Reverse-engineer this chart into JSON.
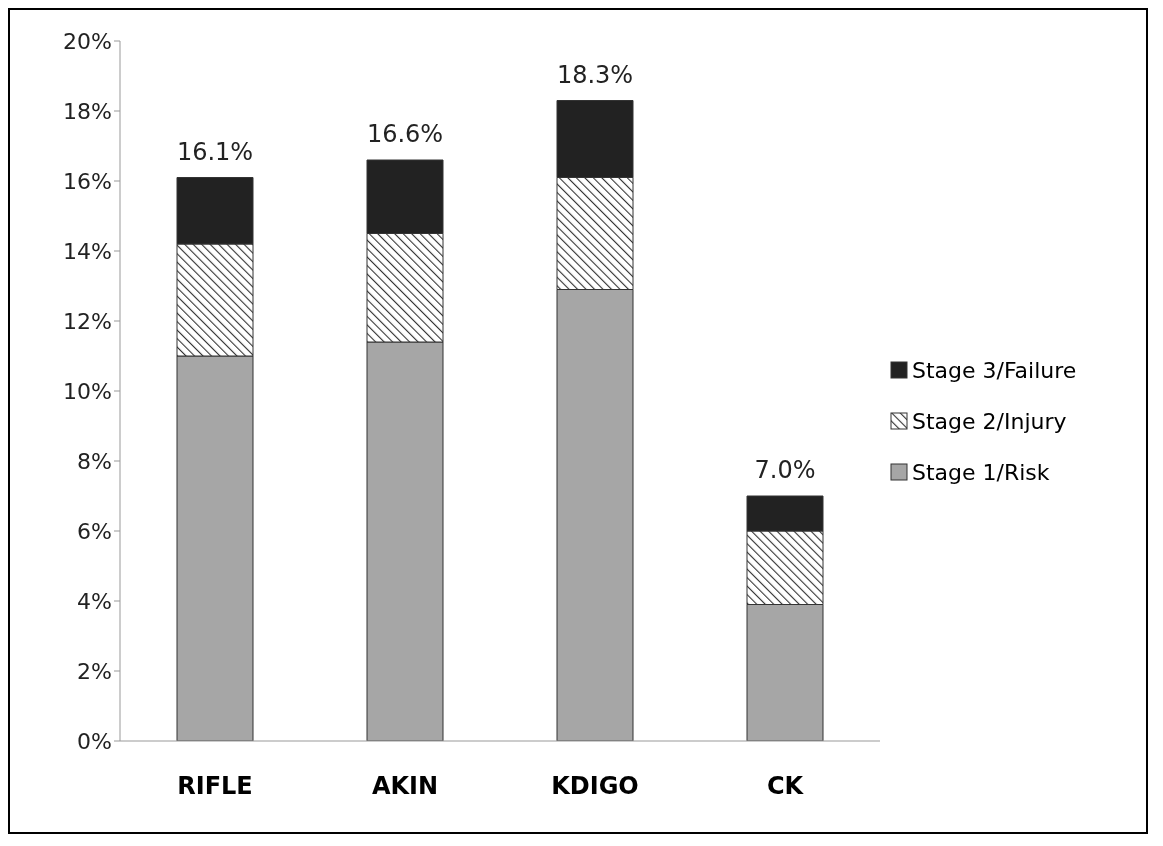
{
  "chart_data": {
    "type": "bar",
    "stacked": true,
    "categories": [
      "RIFLE",
      "AKIN",
      "KDIGO",
      "CK"
    ],
    "series": [
      {
        "name": "Stage 1/Risk",
        "color": "#a6a6a6",
        "values": [
          11.0,
          11.4,
          12.9,
          3.9
        ]
      },
      {
        "name": "Stage 2/Injury",
        "color": "#333333",
        "values": [
          3.2,
          3.1,
          3.2,
          2.1
        ]
      },
      {
        "name": "Stage 3/Failure",
        "color": "#222222",
        "values": [
          1.9,
          2.1,
          2.2,
          1.0
        ]
      }
    ],
    "totals": [
      "16.1%",
      "16.6%",
      "18.3%",
      "7.0%"
    ],
    "ylim": [
      0,
      20
    ],
    "yticks": [
      {
        "value": 0,
        "label": "0%"
      },
      {
        "value": 2,
        "label": "2%"
      },
      {
        "value": 4,
        "label": "4%"
      },
      {
        "value": 6,
        "label": "6%"
      },
      {
        "value": 8,
        "label": "8%"
      },
      {
        "value": 10,
        "label": "10%"
      },
      {
        "value": 12,
        "label": "12%"
      },
      {
        "value": 14,
        "label": "14%"
      },
      {
        "value": 16,
        "label": "16%"
      },
      {
        "value": 18,
        "label": "18%"
      },
      {
        "value": 20,
        "label": "20%"
      }
    ],
    "grid": false,
    "legend": "right"
  }
}
